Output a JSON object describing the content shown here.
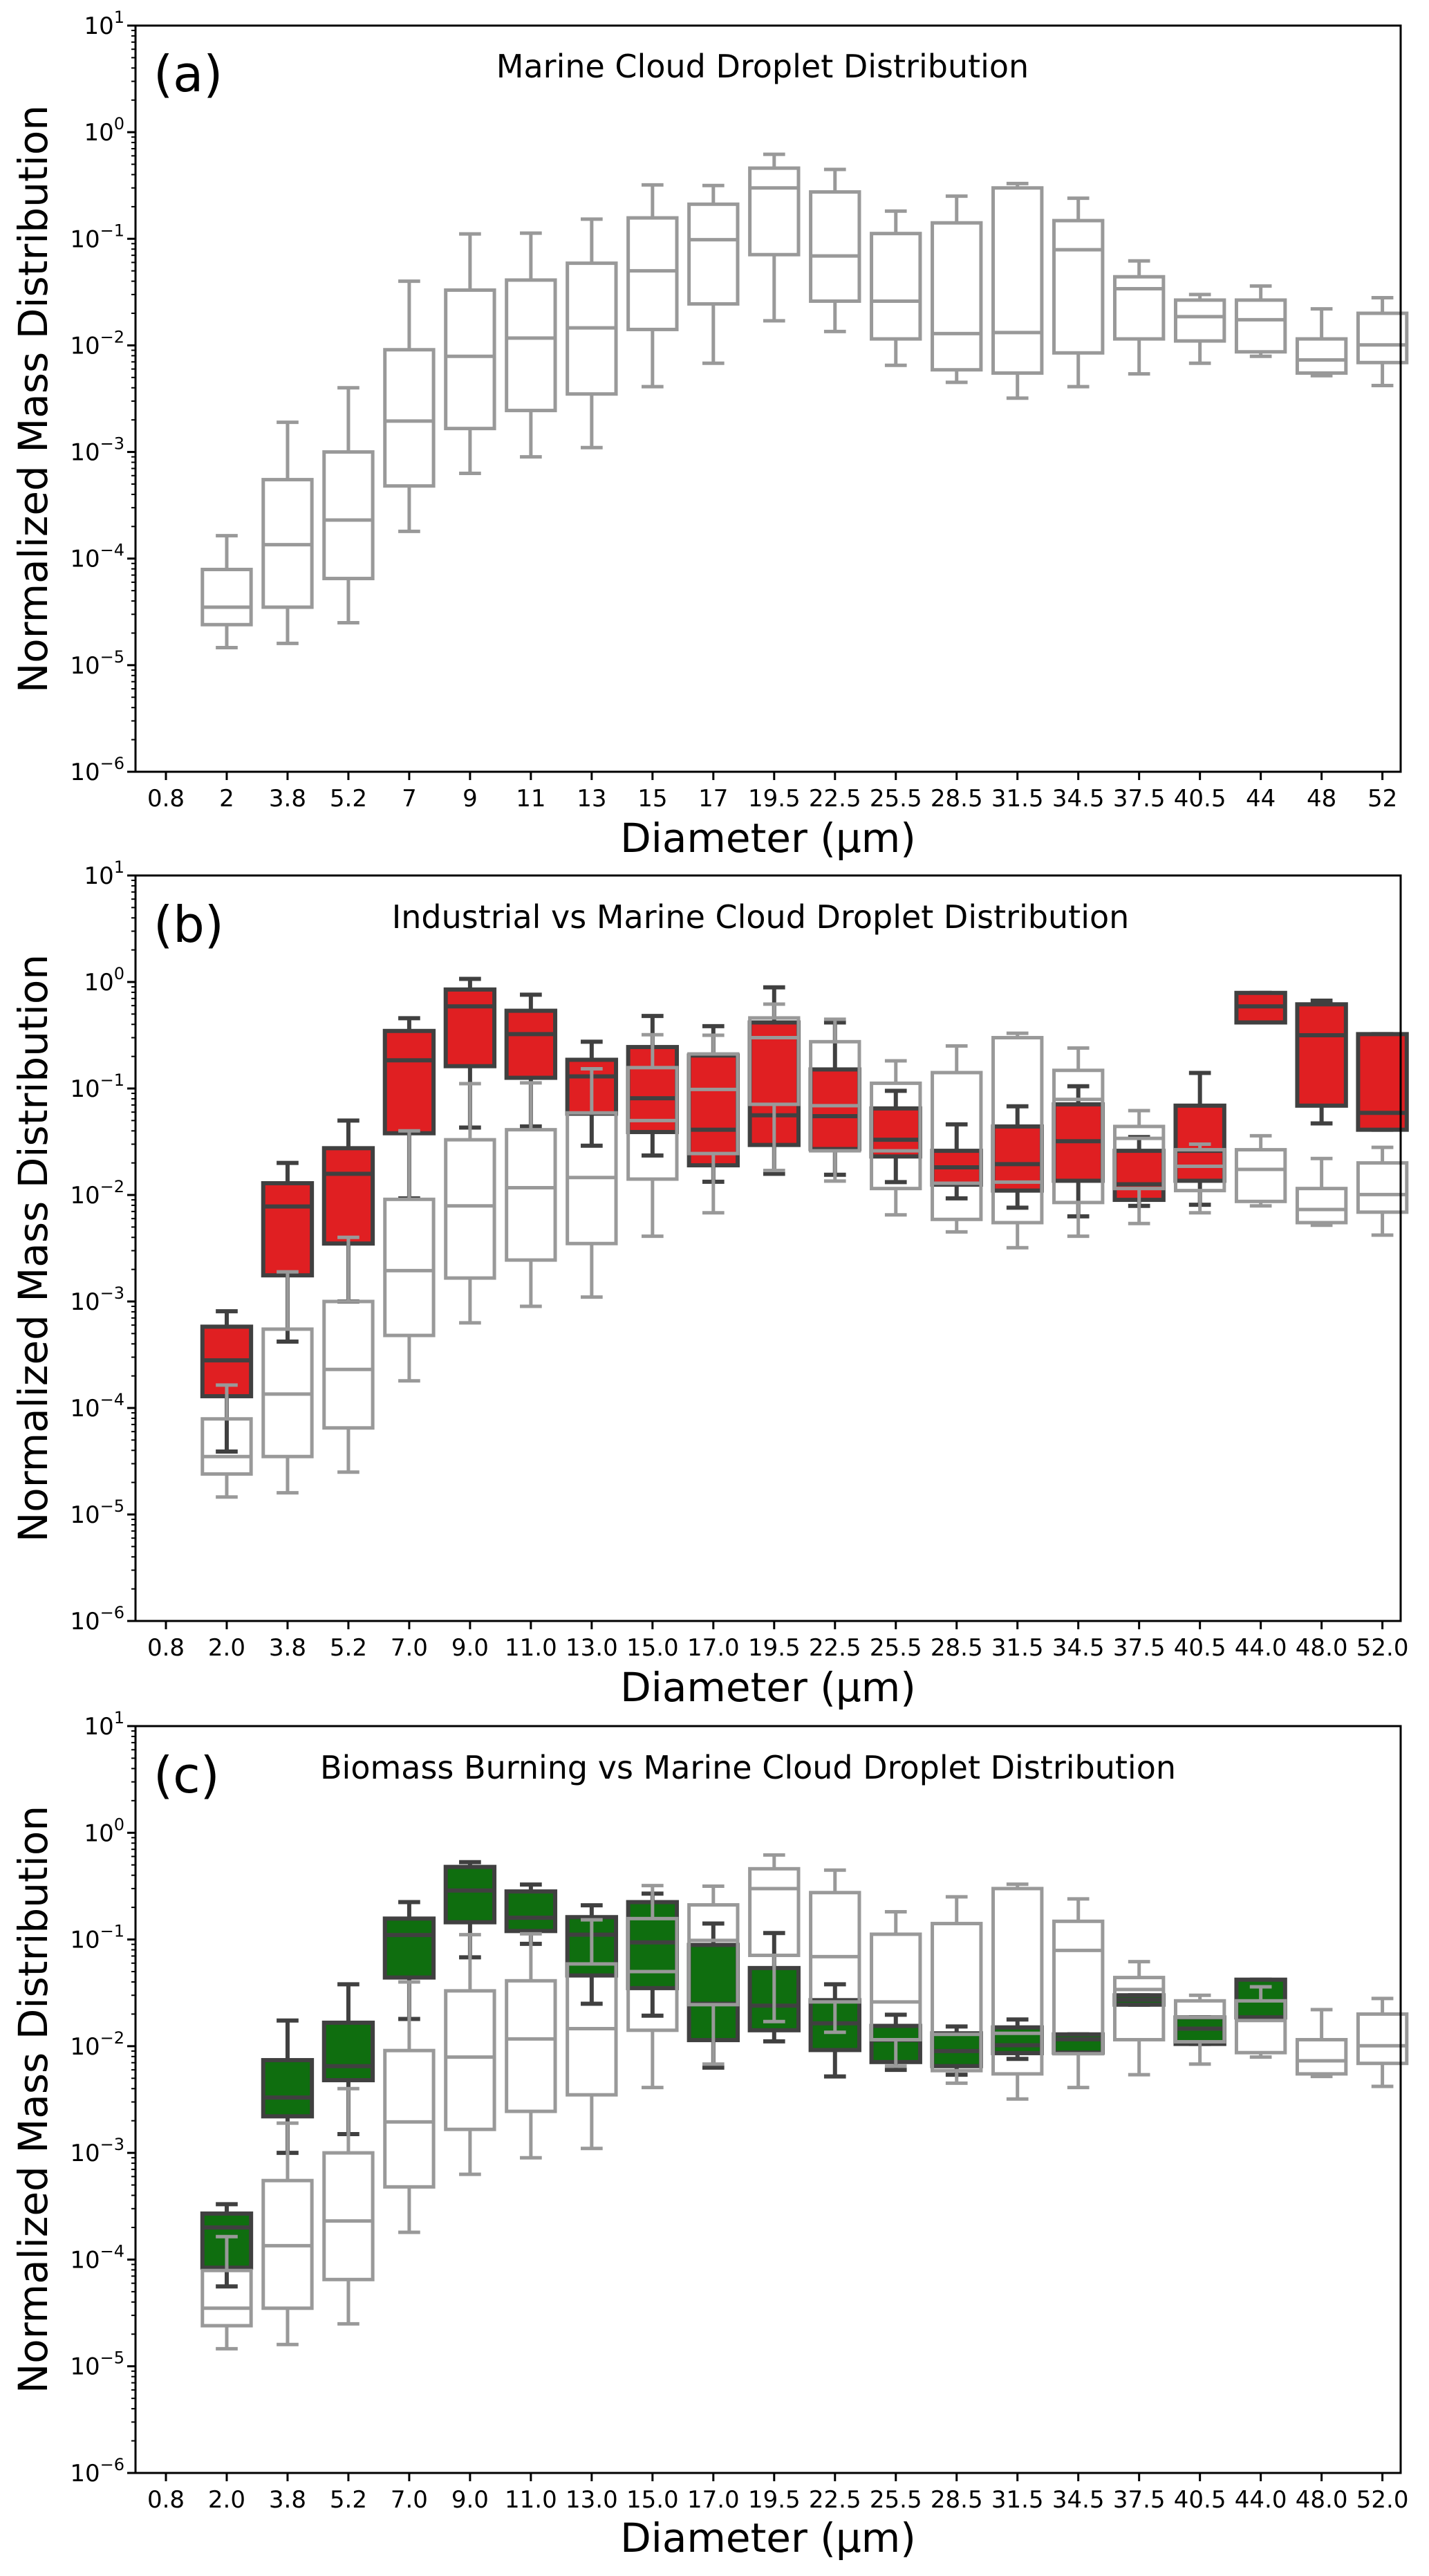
{
  "colors": {
    "marine": "#999999",
    "industrial": "#e01f22",
    "biomass": "#0f6e0f",
    "colored_edge": "#404040",
    "axes": "#000000"
  },
  "chart_data": [
    {
      "type": "box",
      "panel_label": "(a)",
      "title": "Marine Cloud Droplet Distribution",
      "xlabel": "Diameter (μm)",
      "ylabel": "Normalized Mass Distribution",
      "yscale": "log",
      "ylim": [
        1e-06,
        10
      ],
      "yticks": [
        {
          "base": "10",
          "exp": "1"
        },
        {
          "base": "10",
          "exp": "0"
        },
        {
          "base": "10",
          "exp": "−1"
        },
        {
          "base": "10",
          "exp": "−2"
        },
        {
          "base": "10",
          "exp": "−3"
        },
        {
          "base": "10",
          "exp": "−4"
        },
        {
          "base": "10",
          "exp": "−5"
        },
        {
          "base": "10",
          "exp": "−6"
        }
      ],
      "grid": false,
      "categories": [
        "0.8",
        "2",
        "3.8",
        "5.2",
        "7",
        "9",
        "11",
        "13",
        "15",
        "17",
        "19.5",
        "22.5",
        "25.5",
        "28.5",
        "31.5",
        "34.5",
        "37.5",
        "40.5",
        "44",
        "48",
        "52"
      ],
      "stat_order": [
        "whisker_low",
        "q1",
        "median",
        "q3",
        "whisker_high"
      ],
      "series": [
        {
          "key": "marine",
          "fill": "none",
          "values": [
            null,
            [
              1.46e-05,
              2.4e-05,
              3.5e-05,
              7.9e-05,
              0.000164
            ],
            [
              1.6e-05,
              3.5e-05,
              0.000135,
              0.00055,
              0.0019
            ],
            [
              2.5e-05,
              6.5e-05,
              0.00023,
              0.001,
              0.004
            ],
            [
              0.00018,
              0.00048,
              0.00195,
              0.0091,
              0.04
            ],
            [
              0.00063,
              0.00166,
              0.0079,
              0.033,
              0.111
            ],
            [
              0.0009,
              0.00245,
              0.0117,
              0.041,
              0.113
            ],
            [
              0.0011,
              0.0035,
              0.0146,
              0.059,
              0.153
            ],
            [
              0.0041,
              0.0141,
              0.05,
              0.157,
              0.32
            ],
            [
              0.0068,
              0.0245,
              0.098,
              0.211,
              0.316
            ],
            [
              0.017,
              0.071,
              0.3,
              0.46,
              0.62
            ],
            [
              0.0135,
              0.026,
              0.069,
              0.275,
              0.447
            ],
            [
              0.0065,
              0.0115,
              0.026,
              0.112,
              0.182
            ],
            [
              0.0045,
              0.0059,
              0.0129,
              0.141,
              0.251
            ],
            [
              0.0032,
              0.0055,
              0.0132,
              0.3,
              0.33
            ],
            [
              0.0041,
              0.0085,
              0.079,
              0.148,
              0.24
            ],
            [
              0.0054,
              0.0115,
              0.034,
              0.044,
              0.062
            ],
            [
              0.0068,
              0.011,
              0.0186,
              0.0266,
              0.03
            ],
            [
              0.0079,
              0.0087,
              0.0174,
              0.0266,
              0.036
            ],
            [
              0.0052,
              0.0055,
              0.0073,
              0.0115,
              0.022
            ],
            [
              0.0042,
              0.0069,
              0.0101,
              0.02,
              0.028
            ]
          ]
        }
      ]
    },
    {
      "type": "box",
      "panel_label": "(b)",
      "title": "Industrial vs Marine Cloud Droplet Distribution",
      "xlabel": "Diameter (μm)",
      "ylabel": "Normalized Mass Distribution",
      "yscale": "log",
      "ylim": [
        1e-06,
        10
      ],
      "yticks": [
        {
          "base": "10",
          "exp": "1"
        },
        {
          "base": "10",
          "exp": "0"
        },
        {
          "base": "10",
          "exp": "−1"
        },
        {
          "base": "10",
          "exp": "−2"
        },
        {
          "base": "10",
          "exp": "−3"
        },
        {
          "base": "10",
          "exp": "−4"
        },
        {
          "base": "10",
          "exp": "−5"
        },
        {
          "base": "10",
          "exp": "−6"
        }
      ],
      "grid": false,
      "categories": [
        "0.8",
        "2.0",
        "3.8",
        "5.2",
        "7.0",
        "9.0",
        "11.0",
        "13.0",
        "15.0",
        "17.0",
        "19.5",
        "22.5",
        "25.5",
        "28.5",
        "31.5",
        "34.5",
        "37.5",
        "40.5",
        "44.0",
        "48.0",
        "52.0"
      ],
      "stat_order": [
        "whisker_low",
        "q1",
        "median",
        "q3",
        "whisker_high"
      ],
      "series": [
        {
          "key": "industrial",
          "fill": "#e01f22",
          "values": [
            null,
            [
              3.9e-05,
              0.000129,
              0.00028,
              0.00058,
              0.00081
            ],
            [
              0.00042,
              0.00176,
              0.0078,
              0.0129,
              0.02
            ],
            [
              0.001,
              0.0035,
              0.0158,
              0.0275,
              0.05
            ],
            [
              0.0093,
              0.038,
              0.184,
              0.347,
              0.457
            ],
            [
              0.043,
              0.162,
              0.59,
              0.85,
              1.07
            ],
            [
              0.044,
              0.126,
              0.324,
              0.537,
              0.76
            ],
            [
              0.029,
              0.058,
              0.13,
              0.186,
              0.275
            ],
            [
              0.0235,
              0.039,
              0.081,
              0.245,
              0.48
            ],
            [
              0.0133,
              0.019,
              0.041,
              0.204,
              0.385
            ],
            [
              0.0158,
              0.0295,
              0.056,
              0.417,
              0.89
            ],
            [
              0.0155,
              0.027,
              0.055,
              0.151,
              0.417
            ],
            [
              0.0132,
              0.023,
              0.033,
              0.065,
              0.095
            ],
            [
              0.0093,
              0.0125,
              0.0182,
              0.026,
              0.046
            ],
            [
              0.0076,
              0.011,
              0.0195,
              0.044,
              0.068
            ],
            [
              0.0063,
              0.0136,
              0.032,
              0.071,
              0.105
            ],
            [
              0.0079,
              0.009,
              0.0126,
              0.026,
              0.035
            ],
            [
              0.0081,
              0.0136,
              0.026,
              0.069,
              0.14
            ],
            [
              0.417,
              0.417,
              0.59,
              0.79,
              0.79
            ],
            [
              0.047,
              0.069,
              0.316,
              0.617,
              0.668
            ],
            [
              0.041,
              0.041,
              0.059,
              0.324,
              0.324
            ]
          ]
        },
        {
          "key": "marine",
          "fill": "none",
          "values": [
            null,
            [
              1.46e-05,
              2.4e-05,
              3.5e-05,
              7.9e-05,
              0.000164
            ],
            [
              1.6e-05,
              3.5e-05,
              0.000135,
              0.00055,
              0.0019
            ],
            [
              2.5e-05,
              6.5e-05,
              0.00023,
              0.001,
              0.004
            ],
            [
              0.00018,
              0.00048,
              0.00195,
              0.0091,
              0.04
            ],
            [
              0.00063,
              0.00166,
              0.0079,
              0.033,
              0.111
            ],
            [
              0.0009,
              0.00245,
              0.0117,
              0.041,
              0.113
            ],
            [
              0.0011,
              0.0035,
              0.0146,
              0.059,
              0.153
            ],
            [
              0.0041,
              0.0141,
              0.05,
              0.157,
              0.32
            ],
            [
              0.0068,
              0.0245,
              0.098,
              0.211,
              0.316
            ],
            [
              0.017,
              0.071,
              0.3,
              0.46,
              0.62
            ],
            [
              0.0135,
              0.026,
              0.069,
              0.275,
              0.447
            ],
            [
              0.0065,
              0.0115,
              0.026,
              0.112,
              0.182
            ],
            [
              0.0045,
              0.0059,
              0.0129,
              0.141,
              0.251
            ],
            [
              0.0032,
              0.0055,
              0.0132,
              0.3,
              0.33
            ],
            [
              0.0041,
              0.0085,
              0.079,
              0.148,
              0.24
            ],
            [
              0.0054,
              0.0115,
              0.034,
              0.044,
              0.062
            ],
            [
              0.0068,
              0.011,
              0.0186,
              0.0266,
              0.03
            ],
            [
              0.0079,
              0.0087,
              0.0174,
              0.0266,
              0.036
            ],
            [
              0.0052,
              0.0055,
              0.0073,
              0.0115,
              0.022
            ],
            [
              0.0042,
              0.0069,
              0.0101,
              0.02,
              0.028
            ]
          ]
        }
      ]
    },
    {
      "type": "box",
      "panel_label": "(c)",
      "title": "Biomass Burning vs Marine Cloud Droplet Distribution",
      "xlabel": "Diameter (μm)",
      "ylabel": "Normalized Mass Distribution",
      "yscale": "log",
      "ylim": [
        1e-06,
        10
      ],
      "yticks": [
        {
          "base": "10",
          "exp": "1"
        },
        {
          "base": "10",
          "exp": "0"
        },
        {
          "base": "10",
          "exp": "−1"
        },
        {
          "base": "10",
          "exp": "−2"
        },
        {
          "base": "10",
          "exp": "−3"
        },
        {
          "base": "10",
          "exp": "−4"
        },
        {
          "base": "10",
          "exp": "−5"
        },
        {
          "base": "10",
          "exp": "−6"
        }
      ],
      "grid": false,
      "categories": [
        "0.8",
        "2.0",
        "3.8",
        "5.2",
        "7.0",
        "9.0",
        "11.0",
        "13.0",
        "15.0",
        "17.0",
        "19.5",
        "22.5",
        "25.5",
        "28.5",
        "31.5",
        "34.5",
        "37.5",
        "40.5",
        "44.0",
        "48.0",
        "52.0"
      ],
      "stat_order": [
        "whisker_low",
        "q1",
        "median",
        "q3",
        "whisker_high"
      ],
      "series": [
        {
          "key": "biomass",
          "fill": "#0f6e0f",
          "values": [
            null,
            [
              5.6e-05,
              8.4e-05,
              0.0002,
              0.00027,
              0.00033
            ],
            [
              0.001,
              0.0022,
              0.0033,
              0.0074,
              0.0174
            ],
            [
              0.0015,
              0.0048,
              0.0065,
              0.0166,
              0.038
            ],
            [
              0.018,
              0.044,
              0.11,
              0.157,
              0.224
            ],
            [
              0.068,
              0.145,
              0.288,
              0.479,
              0.531
            ],
            [
              0.091,
              0.12,
              0.16,
              0.282,
              0.327
            ],
            [
              0.025,
              0.046,
              0.111,
              0.162,
              0.209
            ],
            [
              0.0193,
              0.035,
              0.094,
              0.224,
              0.269
            ],
            [
              0.0063,
              0.0114,
              0.025,
              0.089,
              0.141
            ],
            [
              0.0111,
              0.0141,
              0.024,
              0.054,
              0.115
            ],
            [
              0.0052,
              0.0092,
              0.0164,
              0.027,
              0.038
            ],
            [
              0.006,
              0.0071,
              0.0114,
              0.0155,
              0.0197
            ],
            [
              0.0054,
              0.0065,
              0.009,
              0.0132,
              0.0153
            ],
            [
              0.0076,
              0.0086,
              0.0102,
              0.015,
              0.0178
            ],
            [
              0.0087,
              0.0087,
              0.0116,
              0.0129,
              0.0129
            ],
            [
              0.0245,
              0.0245,
              0.0272,
              0.03,
              0.03
            ],
            [
              0.0105,
              0.0105,
              0.0146,
              0.0186,
              0.0186
            ],
            [
              0.0186,
              0.0186,
              0.0186,
              0.042,
              0.042
            ],
            null,
            null
          ]
        },
        {
          "key": "marine",
          "fill": "none",
          "values": [
            null,
            [
              1.46e-05,
              2.4e-05,
              3.5e-05,
              7.9e-05,
              0.000164
            ],
            [
              1.6e-05,
              3.5e-05,
              0.000135,
              0.00055,
              0.0019
            ],
            [
              2.5e-05,
              6.5e-05,
              0.00023,
              0.001,
              0.004
            ],
            [
              0.00018,
              0.00048,
              0.00195,
              0.0091,
              0.04
            ],
            [
              0.00063,
              0.00166,
              0.0079,
              0.033,
              0.111
            ],
            [
              0.0009,
              0.00245,
              0.0117,
              0.041,
              0.113
            ],
            [
              0.0011,
              0.0035,
              0.0146,
              0.059,
              0.153
            ],
            [
              0.0041,
              0.0141,
              0.05,
              0.157,
              0.32
            ],
            [
              0.0068,
              0.0245,
              0.098,
              0.211,
              0.316
            ],
            [
              0.017,
              0.071,
              0.3,
              0.46,
              0.62
            ],
            [
              0.0135,
              0.026,
              0.069,
              0.275,
              0.447
            ],
            [
              0.0065,
              0.0115,
              0.026,
              0.112,
              0.182
            ],
            [
              0.0045,
              0.0059,
              0.0129,
              0.141,
              0.251
            ],
            [
              0.0032,
              0.0055,
              0.0132,
              0.3,
              0.33
            ],
            [
              0.0041,
              0.0085,
              0.079,
              0.148,
              0.24
            ],
            [
              0.0054,
              0.0115,
              0.034,
              0.044,
              0.062
            ],
            [
              0.0068,
              0.011,
              0.0186,
              0.0266,
              0.03
            ],
            [
              0.0079,
              0.0087,
              0.0174,
              0.0266,
              0.036
            ],
            [
              0.0052,
              0.0055,
              0.0073,
              0.0115,
              0.022
            ],
            [
              0.0042,
              0.0069,
              0.0101,
              0.02,
              0.028
            ]
          ]
        }
      ]
    }
  ]
}
